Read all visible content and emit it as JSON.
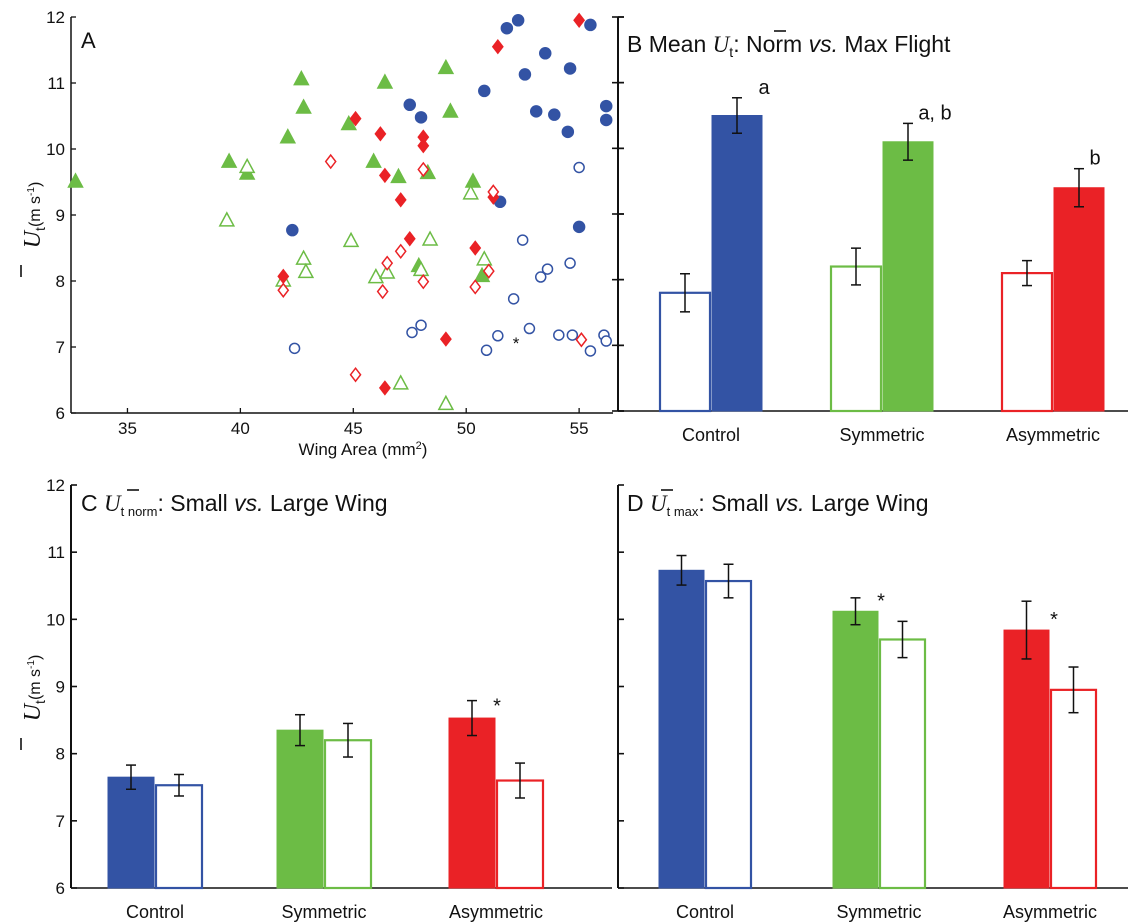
{
  "colors": {
    "control": "#3353a4",
    "symmetric": "#6cbc45",
    "asymmetric": "#ea2226",
    "ink": "#111111"
  },
  "chart_data": [
    {
      "panel": "A",
      "type": "scatter",
      "title": "",
      "xlabel_main": "Wing Area (mm",
      "xlabel_sup": "2",
      "xlabel_end": ")",
      "ylabel": {
        "main": "U",
        "sub": "t",
        "unit": "(m s",
        "unit_sup": "-1",
        "unit_end": ")"
      },
      "xlim": [
        32.5,
        56.5
      ],
      "ylim": [
        6,
        12
      ],
      "xticks": [
        "35",
        "40",
        "45",
        "50",
        "55"
      ],
      "yticks": [
        "6",
        "7",
        "8",
        "9",
        "10",
        "11",
        "12"
      ],
      "annotation": "*",
      "series": [
        {
          "group": "control",
          "marker": "circle",
          "filled": true,
          "points": [
            [
              42.3,
              8.77
            ],
            [
              47.5,
              10.67
            ],
            [
              48.0,
              10.48
            ],
            [
              50.8,
              10.88
            ],
            [
              51.5,
              9.2
            ],
            [
              51.8,
              11.83
            ],
            [
              52.3,
              11.95
            ],
            [
              52.6,
              11.13
            ],
            [
              53.1,
              10.57
            ],
            [
              53.5,
              11.45
            ],
            [
              53.9,
              10.52
            ],
            [
              54.5,
              10.26
            ],
            [
              54.6,
              11.22
            ],
            [
              55.0,
              8.82
            ],
            [
              55.5,
              11.88
            ],
            [
              56.2,
              10.65
            ],
            [
              56.2,
              10.44
            ]
          ]
        },
        {
          "group": "control",
          "marker": "circle",
          "filled": false,
          "points": [
            [
              42.4,
              6.98
            ],
            [
              47.6,
              7.22
            ],
            [
              48.0,
              7.33
            ],
            [
              50.9,
              6.95
            ],
            [
              51.4,
              7.17
            ],
            [
              52.1,
              7.73
            ],
            [
              52.5,
              8.62
            ],
            [
              52.8,
              7.28
            ],
            [
              53.3,
              8.06
            ],
            [
              53.6,
              8.18
            ],
            [
              54.1,
              7.18
            ],
            [
              54.6,
              8.27
            ],
            [
              54.7,
              7.18
            ],
            [
              55.0,
              9.72
            ],
            [
              55.5,
              6.94
            ],
            [
              56.1,
              7.18
            ],
            [
              56.2,
              7.09
            ]
          ]
        },
        {
          "group": "symmetric",
          "marker": "triangle",
          "filled": true,
          "points": [
            [
              32.7,
              9.5
            ],
            [
              39.5,
              9.8
            ],
            [
              40.3,
              9.62
            ],
            [
              42.1,
              10.17
            ],
            [
              42.7,
              11.05
            ],
            [
              42.8,
              10.62
            ],
            [
              44.8,
              10.37
            ],
            [
              45.9,
              9.8
            ],
            [
              46.4,
              11.0
            ],
            [
              47.0,
              9.57
            ],
            [
              47.9,
              8.22
            ],
            [
              48.3,
              9.63
            ],
            [
              49.1,
              11.22
            ],
            [
              49.3,
              10.56
            ],
            [
              50.3,
              9.5
            ],
            [
              50.7,
              8.07
            ]
          ]
        },
        {
          "group": "symmetric",
          "marker": "triangle",
          "filled": false,
          "points": [
            [
              39.4,
              8.91
            ],
            [
              40.3,
              9.72
            ],
            [
              41.9,
              8.0
            ],
            [
              42.8,
              8.33
            ],
            [
              42.9,
              8.13
            ],
            [
              44.9,
              8.6
            ],
            [
              46.0,
              8.05
            ],
            [
              46.5,
              8.12
            ],
            [
              47.1,
              6.44
            ],
            [
              48.0,
              8.16
            ],
            [
              48.4,
              8.62
            ],
            [
              49.1,
              6.13
            ],
            [
              50.2,
              9.32
            ],
            [
              50.8,
              8.32
            ]
          ]
        },
        {
          "group": "asymmetric",
          "marker": "diamond",
          "filled": true,
          "points": [
            [
              41.9,
              8.07
            ],
            [
              45.1,
              10.46
            ],
            [
              46.2,
              10.23
            ],
            [
              46.4,
              9.6
            ],
            [
              46.4,
              6.38
            ],
            [
              47.1,
              9.23
            ],
            [
              47.5,
              8.64
            ],
            [
              48.1,
              10.18
            ],
            [
              48.1,
              10.05
            ],
            [
              49.1,
              7.12
            ],
            [
              50.4,
              8.5
            ],
            [
              51.2,
              9.27
            ],
            [
              51.4,
              11.55
            ],
            [
              55.0,
              11.95
            ]
          ]
        },
        {
          "group": "asymmetric",
          "marker": "diamond",
          "filled": false,
          "points": [
            [
              41.9,
              7.86
            ],
            [
              44.0,
              9.81
            ],
            [
              45.1,
              6.58
            ],
            [
              46.3,
              7.84
            ],
            [
              46.5,
              8.27
            ],
            [
              47.1,
              8.45
            ],
            [
              48.1,
              9.69
            ],
            [
              48.1,
              7.99
            ],
            [
              50.4,
              7.91
            ],
            [
              51.0,
              8.15
            ],
            [
              51.2,
              9.35
            ],
            [
              55.1,
              7.11
            ]
          ]
        }
      ]
    },
    {
      "panel": "B",
      "type": "bar",
      "title": {
        "pre": "Mean ",
        "u": "U",
        "sub": "t",
        "post": ": Norm ",
        "vs": "vs.",
        "end": " Max Flight"
      },
      "categories": [
        "Control",
        "Symmetric",
        "Asymmetric"
      ],
      "ylim": [
        6,
        12
      ],
      "series": [
        {
          "style": "open",
          "values": [
            7.8,
            8.2,
            8.1
          ],
          "err": [
            0.29,
            0.28,
            0.19
          ]
        },
        {
          "style": "filled",
          "values": [
            10.5,
            10.1,
            9.4
          ],
          "err": [
            0.27,
            0.28,
            0.29
          ]
        }
      ],
      "letters": [
        "a",
        "a, b",
        "b"
      ]
    },
    {
      "panel": "C",
      "type": "bar",
      "title": {
        "u": "U",
        "sub": "t norm",
        "post": ": Small ",
        "vs": "vs.",
        "end": " Large Wing"
      },
      "categories": [
        "Control",
        "Symmetric",
        "Asymmetric"
      ],
      "ylabel": {
        "main": "U",
        "sub": "t",
        "unit": "(m s",
        "unit_sup": "-1",
        "unit_end": ")"
      },
      "ylim": [
        6,
        12
      ],
      "yticks": [
        "6",
        "7",
        "8",
        "9",
        "10",
        "11",
        "12"
      ],
      "series": [
        {
          "style": "filled",
          "values": [
            7.65,
            8.35,
            8.53
          ],
          "err": [
            0.18,
            0.23,
            0.26
          ]
        },
        {
          "style": "open",
          "values": [
            7.53,
            8.2,
            7.6
          ],
          "err": [
            0.16,
            0.25,
            0.26
          ]
        }
      ],
      "significance": [
        "",
        "",
        "*"
      ]
    },
    {
      "panel": "D",
      "type": "bar",
      "title": {
        "u": "U",
        "sub": "t max",
        "post": ": Small ",
        "vs": "vs.",
        "end": " Large Wing"
      },
      "categories": [
        "Control",
        "Symmetric",
        "Asymmetric"
      ],
      "ylim": [
        6,
        12
      ],
      "series": [
        {
          "style": "filled",
          "values": [
            10.73,
            10.12,
            9.84
          ],
          "err": [
            0.22,
            0.2,
            0.43
          ]
        },
        {
          "style": "open",
          "values": [
            10.57,
            9.7,
            8.95
          ],
          "err": [
            0.25,
            0.27,
            0.34
          ]
        }
      ],
      "significance": [
        "",
        "*",
        "*"
      ]
    }
  ]
}
